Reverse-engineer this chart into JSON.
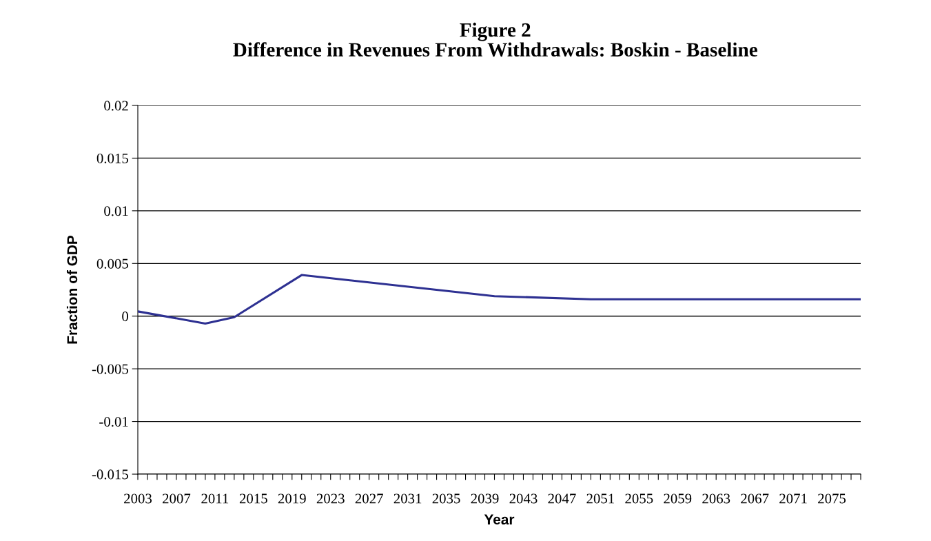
{
  "chart_data": {
    "type": "line",
    "title": "Figure 2\nDifference in Revenues From Withdrawals: Boskin - Baseline",
    "xlabel": "Year",
    "ylabel": "Fraction of GDP",
    "x": [
      2003,
      2010,
      2013,
      2020,
      2040,
      2050,
      2078
    ],
    "series": [
      {
        "color": "#2e3192",
        "values": [
          0.00045,
          -0.0007,
          -0.0001,
          0.0039,
          0.0019,
          0.0016,
          0.0016
        ]
      }
    ],
    "xlim": [
      2003,
      2078
    ],
    "xticks": [
      2003,
      {
        "value": 2004,
        "label": null
      },
      {
        "value": 2005,
        "label": null
      },
      {
        "value": 2006,
        "label": null
      },
      2007,
      {
        "value": 2008,
        "label": null
      },
      {
        "value": 2009,
        "label": null
      },
      {
        "value": 2010,
        "label": null
      },
      2011,
      {
        "value": 2012,
        "label": null
      },
      {
        "value": 2013,
        "label": null
      },
      {
        "value": 2014,
        "label": null
      },
      2015,
      {
        "value": 2016,
        "label": null
      },
      {
        "value": 2017,
        "label": null
      },
      {
        "value": 2018,
        "label": null
      },
      2019,
      {
        "value": 2020,
        "label": null
      },
      {
        "value": 2021,
        "label": null
      },
      {
        "value": 2022,
        "label": null
      },
      2023,
      {
        "value": 2024,
        "label": null
      },
      {
        "value": 2025,
        "label": null
      },
      {
        "value": 2026,
        "label": null
      },
      2027,
      {
        "value": 2028,
        "label": null
      },
      {
        "value": 2029,
        "label": null
      },
      {
        "value": 2030,
        "label": null
      },
      2031,
      {
        "value": 2032,
        "label": null
      },
      {
        "value": 2033,
        "label": null
      },
      {
        "value": 2034,
        "label": null
      },
      2035,
      {
        "value": 2036,
        "label": null
      },
      {
        "value": 2037,
        "label": null
      },
      {
        "value": 2038,
        "label": null
      },
      2039,
      {
        "value": 2040,
        "label": null
      },
      {
        "value": 2041,
        "label": null
      },
      {
        "value": 2042,
        "label": null
      },
      2043,
      {
        "value": 2044,
        "label": null
      },
      {
        "value": 2045,
        "label": null
      },
      {
        "value": 2046,
        "label": null
      },
      2047,
      {
        "value": 2048,
        "label": null
      },
      {
        "value": 2049,
        "label": null
      },
      {
        "value": 2050,
        "label": null
      },
      2051,
      {
        "value": 2052,
        "label": null
      },
      {
        "value": 2053,
        "label": null
      },
      {
        "value": 2054,
        "label": null
      },
      2055,
      {
        "value": 2056,
        "label": null
      },
      {
        "value": 2057,
        "label": null
      },
      {
        "value": 2058,
        "label": null
      },
      2059,
      {
        "value": 2060,
        "label": null
      },
      {
        "value": 2061,
        "label": null
      },
      {
        "value": 2062,
        "label": null
      },
      2063,
      {
        "value": 2064,
        "label": null
      },
      {
        "value": 2065,
        "label": null
      },
      {
        "value": 2066,
        "label": null
      },
      2067,
      {
        "value": 2068,
        "label": null
      },
      {
        "value": 2069,
        "label": null
      },
      {
        "value": 2070,
        "label": null
      },
      2071,
      {
        "value": 2072,
        "label": null
      },
      {
        "value": 2073,
        "label": null
      },
      {
        "value": 2074,
        "label": null
      },
      2075,
      {
        "value": 2076,
        "label": null
      },
      {
        "value": 2077,
        "label": null
      },
      {
        "value": 2078,
        "label": null
      }
    ],
    "ylim": [
      -0.015,
      0.02
    ],
    "yticks": [
      -0.015,
      -0.01,
      -0.005,
      0,
      0.005,
      0.01,
      0.015,
      0.02
    ],
    "grid": "y",
    "legend": false,
    "marker": "none",
    "line_style": "solid"
  }
}
